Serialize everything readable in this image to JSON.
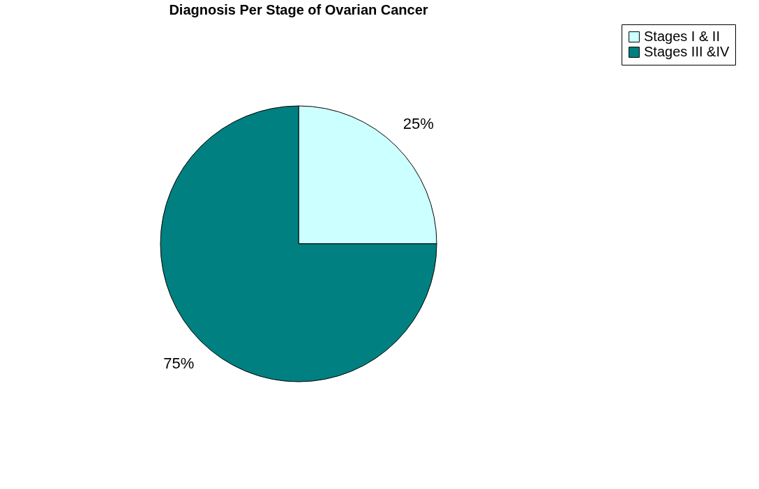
{
  "chart_data": {
    "type": "pie",
    "title": "Diagnosis Per Stage of Ovarian Cancer",
    "categories": [
      "Stages I & II",
      "Stages III &IV"
    ],
    "values": [
      25,
      75
    ],
    "colors": [
      "#ccffff",
      "#008080"
    ],
    "value_labels": [
      "25%",
      "75%"
    ],
    "legend": "right"
  }
}
